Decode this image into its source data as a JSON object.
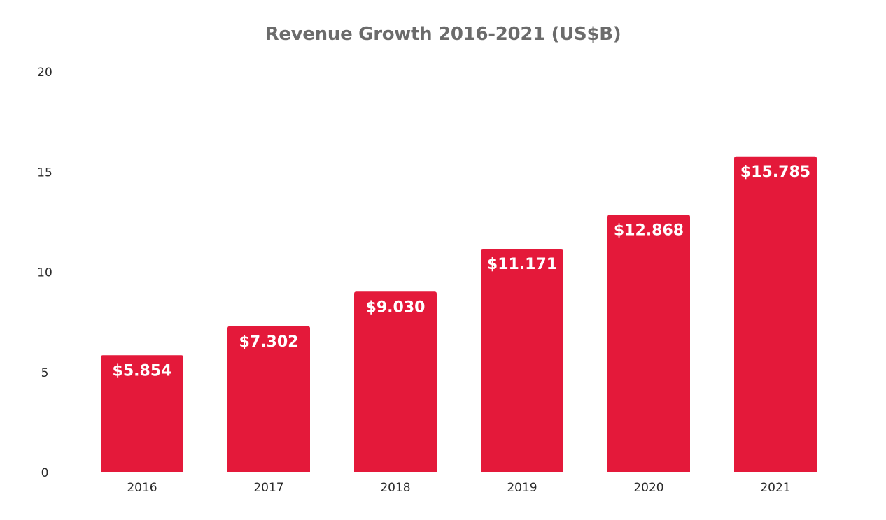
{
  "chart_data": {
    "type": "bar",
    "title": "Revenue Growth 2016-2021 (US$B)",
    "xlabel": "",
    "ylabel": "",
    "categories": [
      "2016",
      "2017",
      "2018",
      "2019",
      "2020",
      "2021"
    ],
    "values": [
      5.854,
      7.302,
      9.03,
      11.171,
      12.868,
      15.785
    ],
    "data_labels": [
      "$5.854",
      "$7.302",
      "$9.030",
      "$11.171",
      "$12.868",
      "$15.785"
    ],
    "ylim": [
      0,
      20
    ],
    "yticks": [
      0,
      5,
      10,
      15,
      20
    ],
    "grid": false,
    "legend": "none",
    "bar_color": "#e4193a"
  }
}
